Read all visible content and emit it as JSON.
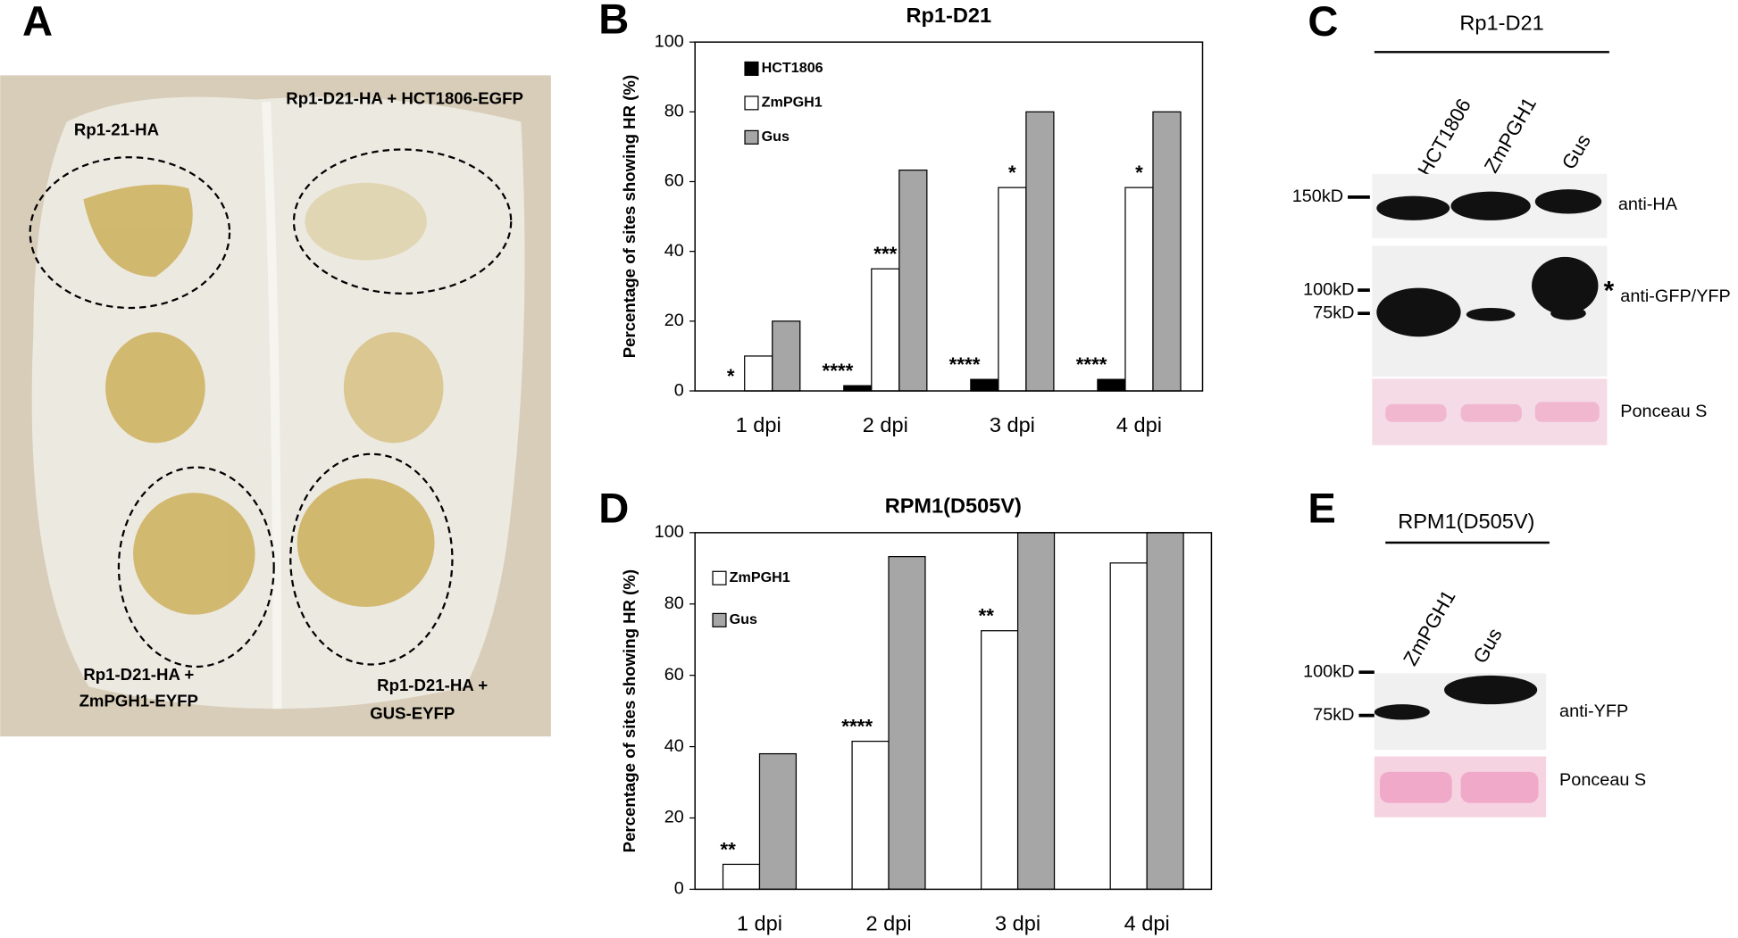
{
  "panels": {
    "A": {
      "letter": "A",
      "labels": [
        "Rp1-21-HA",
        "Rp1-D21-HA + HCT1806-EGFP",
        "Rp1-D21-HA +",
        "ZmPGH1-EYFP",
        "Rp1-D21-HA +",
        "GUS-EYFP"
      ]
    },
    "C": {
      "letter": "C",
      "title": "Rp1-D21",
      "lanes": [
        "HCT1806",
        "ZmPGH1",
        "Gus"
      ],
      "markers": [
        "150kD",
        "100kD",
        "75kD"
      ],
      "blots": [
        "anti-HA",
        "anti-GFP/YFP",
        "Ponceau S"
      ],
      "note": "*"
    },
    "E": {
      "letter": "E",
      "title": "RPM1(D505V)",
      "lanes": [
        "ZmPGH1",
        "Gus"
      ],
      "markers": [
        "100kD",
        "75kD"
      ],
      "blots": [
        "anti-YFP",
        "Ponceau S"
      ]
    }
  },
  "chart_data": [
    {
      "type": "bar",
      "letter": "B",
      "title": "Rp1-D21",
      "y_label": "Percentage of sites showing HR (%)",
      "categories": [
        "1 dpi",
        "2 dpi",
        "3 dpi",
        "4 dpi"
      ],
      "series": [
        {
          "name": "HCT1806",
          "color": "#000000",
          "values": [
            0,
            1.5,
            3.3,
            3.3
          ],
          "annotations": [
            "*",
            "****",
            "****",
            "****"
          ]
        },
        {
          "name": "ZmPGH1",
          "color": "#ffffff",
          "values": [
            10,
            35,
            58.3,
            58.3
          ],
          "annotations": [
            null,
            "***",
            "*",
            "*"
          ]
        },
        {
          "name": "Gus",
          "color": "#a6a6a6",
          "values": [
            20,
            63.3,
            80,
            80
          ],
          "annotations": [
            null,
            null,
            null,
            null
          ]
        }
      ],
      "ylim": [
        0,
        100
      ],
      "yticks": [
        0,
        20,
        40,
        60,
        80,
        100
      ],
      "legend": "upper left"
    },
    {
      "type": "bar",
      "letter": "D",
      "title": "RPM1(D505V)",
      "y_label": "Percentage of sites showing HR (%)",
      "categories": [
        "1 dpi",
        "2 dpi",
        "3 dpi",
        "4 dpi"
      ],
      "series": [
        {
          "name": "ZmPGH1",
          "color": "#ffffff",
          "values": [
            7,
            41.5,
            72.5,
            91.5
          ],
          "annotations": [
            "**",
            "****",
            "**",
            null
          ]
        },
        {
          "name": "Gus",
          "color": "#a6a6a6",
          "values": [
            38,
            93.3,
            100,
            100
          ],
          "annotations": [
            null,
            null,
            null,
            null
          ]
        }
      ],
      "ylim": [
        0,
        100
      ],
      "yticks": [
        0,
        20,
        40,
        60,
        80,
        100
      ],
      "legend": "upper left"
    }
  ]
}
